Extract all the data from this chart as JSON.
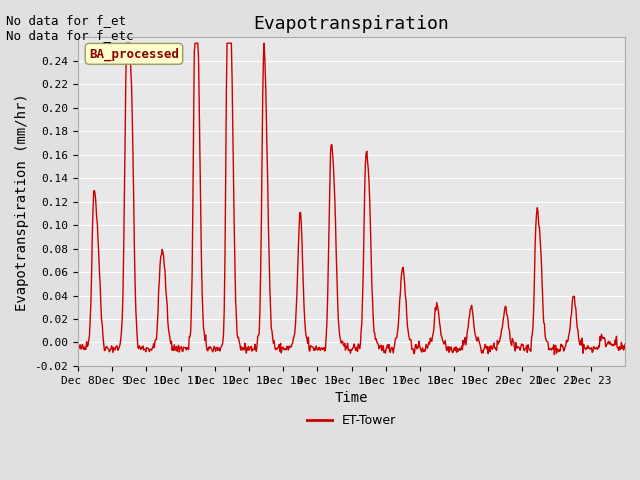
{
  "title": "Evapotranspiration",
  "xlabel": "Time",
  "ylabel": "Evapotranspiration (mm/hr)",
  "ylim": [
    -0.02,
    0.26
  ],
  "yticks": [
    -0.02,
    0.0,
    0.02,
    0.04,
    0.06,
    0.08,
    0.1,
    0.12,
    0.14,
    0.16,
    0.18,
    0.2,
    0.22,
    0.24
  ],
  "xtick_labels": [
    "Dec 8",
    "Dec 9",
    "Dec 10",
    "Dec 11",
    "Dec 12",
    "Dec 13",
    "Dec 14",
    "Dec 15",
    "Dec 16",
    "Dec 17",
    "Dec 18",
    "Dec 19",
    "Dec 20",
    "Dec 21",
    "Dec 22",
    "Dec 23"
  ],
  "line_color": "#cc0000",
  "line_width": 1.0,
  "fig_bg_color": "#e0e0e0",
  "plot_bg_color": "#e8e8e8",
  "annotation_text1": "No data for f_et",
  "annotation_text2": "No data for f_etc",
  "annotation_fontsize": 9,
  "legend_label": "ET-Tower",
  "legend_box_color": "#ffffcc",
  "legend_box_edge": "#999966",
  "ba_label": "BA_processed",
  "title_fontsize": 13,
  "axis_label_fontsize": 10
}
